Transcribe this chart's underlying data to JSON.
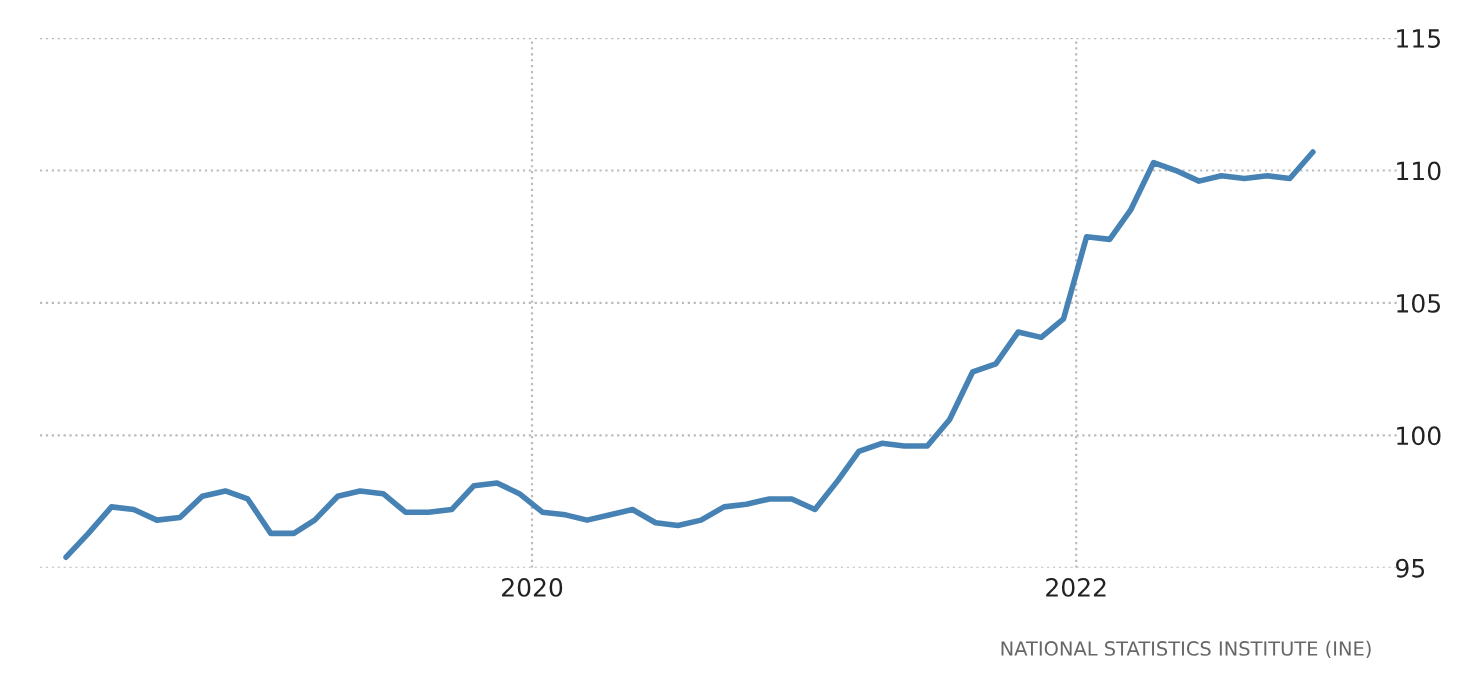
{
  "chart_data": {
    "type": "line",
    "x": [
      "2018-04-15",
      "2018-05-15",
      "2018-06-15",
      "2018-07-15",
      "2018-08-15",
      "2018-09-15",
      "2018-10-15",
      "2018-11-15",
      "2018-12-15",
      "2019-01-15",
      "2019-02-15",
      "2019-03-15",
      "2019-04-15",
      "2019-05-15",
      "2019-06-15",
      "2019-07-15",
      "2019-08-15",
      "2019-09-15",
      "2019-10-15",
      "2019-11-15",
      "2019-12-15",
      "2020-01-15",
      "2020-02-15",
      "2020-03-15",
      "2020-04-15",
      "2020-05-15",
      "2020-06-15",
      "2020-07-15",
      "2020-08-15",
      "2020-09-15",
      "2020-10-15",
      "2020-11-15",
      "2020-12-15",
      "2021-01-15",
      "2021-02-15",
      "2021-03-15",
      "2021-04-15",
      "2021-05-15",
      "2021-06-15",
      "2021-07-15",
      "2021-08-15",
      "2021-09-15",
      "2021-10-15",
      "2021-11-15",
      "2021-12-15",
      "2022-01-15",
      "2022-02-15",
      "2022-03-15",
      "2022-04-15",
      "2022-05-15",
      "2022-06-15",
      "2022-07-15",
      "2022-08-15",
      "2022-09-15",
      "2022-10-15",
      "2022-11-15"
    ],
    "series": [
      {
        "color": "#4682b4",
        "values": [
          95.4,
          96.3,
          97.3,
          97.2,
          96.8,
          96.9,
          97.7,
          97.9,
          97.6,
          96.3,
          96.3,
          96.8,
          97.7,
          97.9,
          97.8,
          97.1,
          97.1,
          97.2,
          98.1,
          98.2,
          97.8,
          97.1,
          97.0,
          96.8,
          97.0,
          97.2,
          96.7,
          96.6,
          96.8,
          97.3,
          97.4,
          97.6,
          97.6,
          97.2,
          98.3,
          99.4,
          99.7,
          99.6,
          99.6,
          100.6,
          102.4,
          102.7,
          103.9,
          103.7,
          104.4,
          107.5,
          107.4,
          108.5,
          110.3,
          110.0,
          109.6,
          109.8,
          109.7,
          109.8,
          109.7,
          110.7
        ]
      }
    ],
    "xlim": [
      "2018-03-11",
      "2023-03-12"
    ],
    "xticks": [
      {
        "value": "2020-01-01",
        "label": "2020"
      },
      {
        "value": "2022-01-01",
        "label": "2022"
      }
    ],
    "ylim": [
      95,
      115
    ],
    "yticks": [
      95,
      100,
      105,
      110,
      115
    ],
    "grid": true,
    "annotations": [
      "NATIONAL STATISTICS INSTITUTE (INE)"
    ]
  }
}
